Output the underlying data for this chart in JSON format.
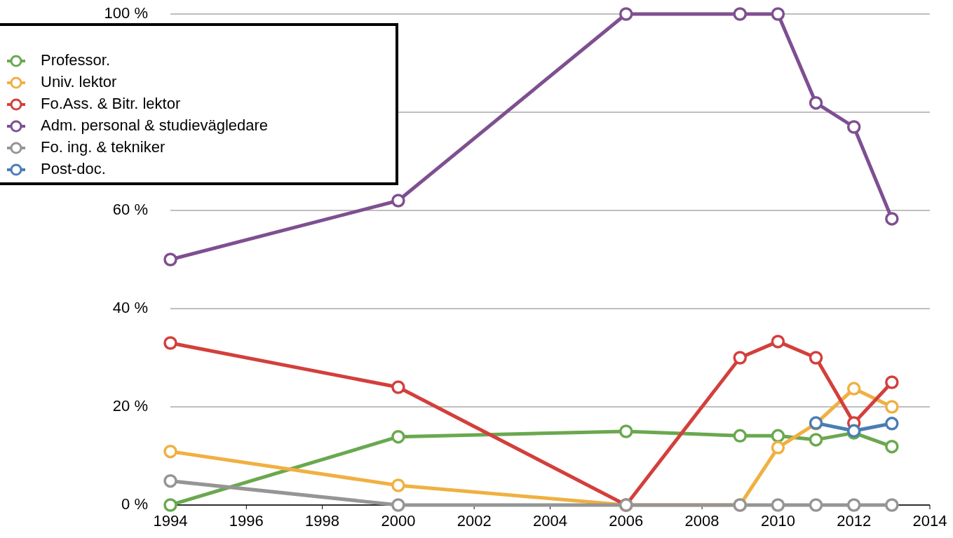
{
  "chart_data": {
    "type": "line",
    "x": [
      1994,
      2000,
      2006,
      2009,
      2010,
      2011,
      2012,
      2013
    ],
    "xlim": [
      1994,
      2014
    ],
    "xticks": [
      1994,
      1996,
      1998,
      2000,
      2002,
      2004,
      2006,
      2008,
      2010,
      2012,
      2014
    ],
    "ylim": [
      0,
      100
    ],
    "yticks": [
      {
        "value": 0,
        "label": "0 %"
      },
      {
        "value": 20,
        "label": "20 %"
      },
      {
        "value": 40,
        "label": "40 %"
      },
      {
        "value": 60,
        "label": "60 %"
      },
      {
        "value": 80,
        "label": null
      },
      {
        "value": 100,
        "label": "100 %"
      }
    ],
    "grid": "y",
    "legend": "top left",
    "marker": "circle",
    "line_style": "solid",
    "series": [
      {
        "name": "Professor.",
        "color": "#6aa84f",
        "values": [
          0,
          13.9,
          15,
          14.1,
          14.1,
          13.3,
          14.7,
          11.9
        ]
      },
      {
        "name": "Univ. lektor",
        "color": "#f0b041",
        "values": [
          10.9,
          4,
          0,
          0,
          11.7,
          16.6,
          23.7,
          20
        ]
      },
      {
        "name": "Fo.Ass. & Bitr. lektor",
        "color": "#d33f3c",
        "values": [
          33,
          24,
          0,
          30,
          33.3,
          30,
          16.7,
          25
        ]
      },
      {
        "name": "Adm. personal & studievägledare",
        "color": "#7e4f91",
        "values": [
          50,
          62,
          100,
          100,
          100,
          81.9,
          77,
          58.3
        ]
      },
      {
        "name": "Fo. ing. & tekniker",
        "color": "#959595",
        "values": [
          4.9,
          0,
          0,
          0,
          0,
          0,
          0,
          0
        ]
      },
      {
        "name": "Post-doc.",
        "color": "#4a7db4",
        "values": [
          null,
          null,
          null,
          null,
          null,
          16.7,
          15.1,
          16.6
        ]
      }
    ]
  }
}
